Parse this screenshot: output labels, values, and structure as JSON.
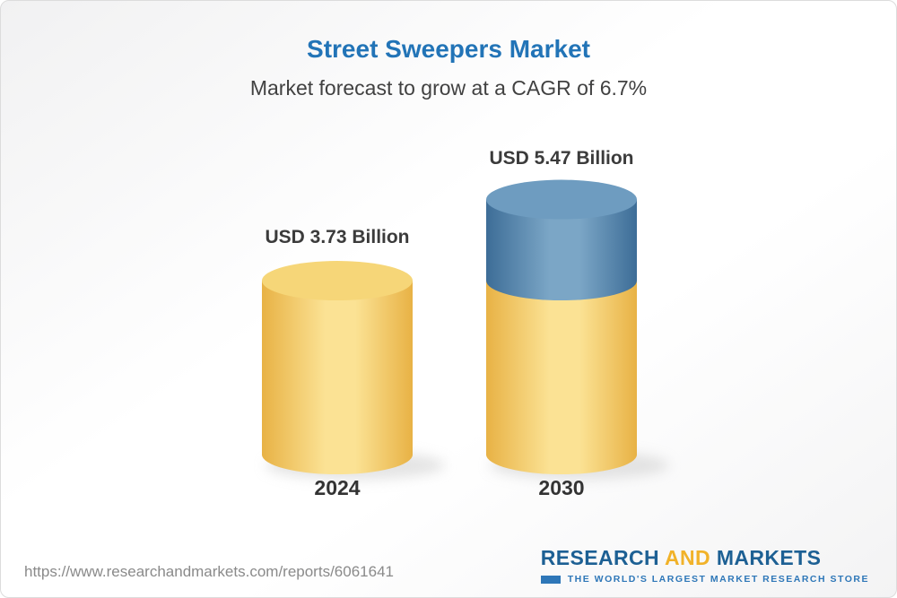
{
  "chart_data": {
    "type": "bar",
    "variant": "3d-cylinder",
    "title": "Street Sweepers Market",
    "subtitle": "Market forecast to grow at a CAGR of 6.7%",
    "unit": "USD Billion",
    "categories": [
      "2024",
      "2030"
    ],
    "values": [
      3.73,
      5.47
    ],
    "value_labels": [
      "USD 3.73 Billion",
      "USD 5.47 Billion"
    ],
    "cagr_percent": 6.7,
    "base_value": 3.73,
    "segment_note": "2030 cylinder shows 2024 base in gold plus forecast growth in blue",
    "legend_position": "none",
    "grid": false,
    "colors": {
      "gold_edge": "#e8b245",
      "gold_highlight": "#fbe294",
      "gold_top": "#f6d678",
      "blue_edge": "#3d6d97",
      "blue_highlight": "#7ba6c6",
      "blue_top": "#6e9cc0",
      "title_blue": "#2274b7",
      "logo_navy": "#1d6094",
      "logo_gold": "#f1b229",
      "tagline_blue": "#2e77b8"
    }
  },
  "footer": {
    "url": "https://www.researchandmarkets.com/reports/6061641",
    "logo": {
      "word1": "RESEARCH",
      "word2": "AND",
      "word3": "MARKETS",
      "tagline": "THE WORLD'S LARGEST MARKET RESEARCH STORE"
    }
  }
}
